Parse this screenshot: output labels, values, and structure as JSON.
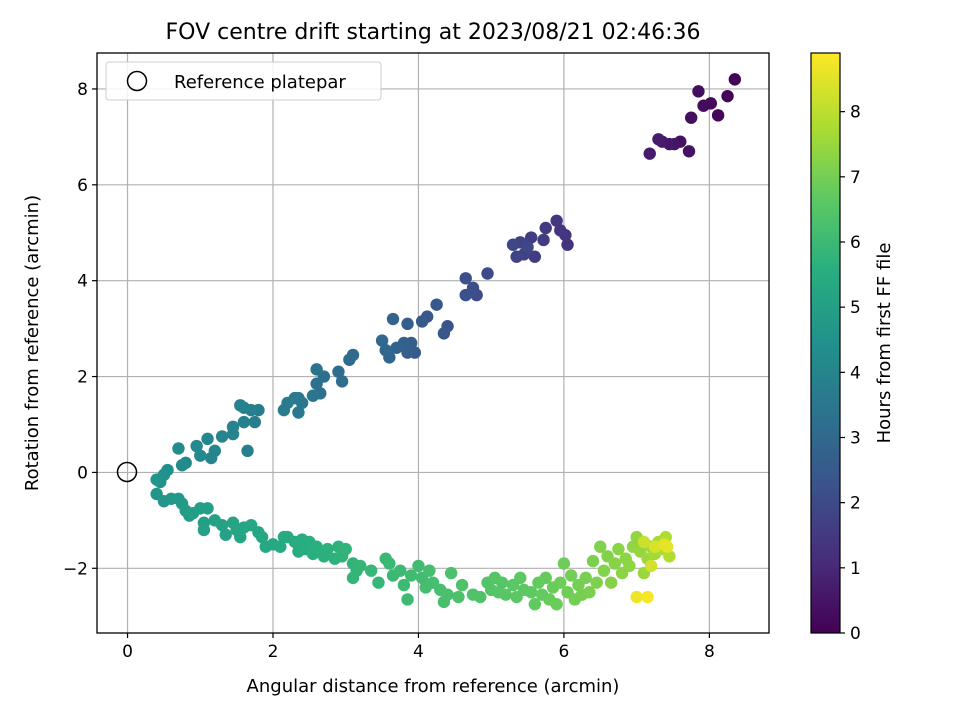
{
  "chart_data": {
    "type": "scatter",
    "title": "FOV centre drift starting at 2023/08/21 02:46:36",
    "xlabel": "Angular distance from reference (arcmin)",
    "ylabel": "Rotation from reference (arcmin)",
    "xlim": [
      -0.42,
      8.82
    ],
    "ylim": [
      -3.35,
      8.75
    ],
    "xticks": [
      0,
      2,
      4,
      6,
      8
    ],
    "yticks": [
      -2,
      0,
      2,
      4,
      6,
      8
    ],
    "xtick_labels": [
      "0",
      "2",
      "4",
      "6",
      "8"
    ],
    "ytick_labels": [
      "−2",
      "0",
      "2",
      "4",
      "6",
      "8"
    ],
    "grid": true,
    "legend": {
      "position": "top-left",
      "entries": [
        "Reference platepar"
      ]
    },
    "reference_point": {
      "x": 0,
      "y": 0,
      "marker": "open-circle"
    },
    "colorbar": {
      "label": "Hours from first FF file",
      "range": [
        0,
        8.9
      ],
      "ticks": [
        0,
        1,
        2,
        3,
        4,
        5,
        6,
        7,
        8
      ],
      "tick_labels": [
        "0",
        "1",
        "2",
        "3",
        "4",
        "5",
        "6",
        "7",
        "8"
      ],
      "colormap": "viridis"
    },
    "series": [
      {
        "points": [
          [
            8.35,
            8.2,
            0.05
          ],
          [
            8.25,
            7.85,
            0.1
          ],
          [
            8.12,
            7.45,
            0.15
          ],
          [
            8.02,
            7.7,
            0.2
          ],
          [
            7.92,
            7.65,
            0.25
          ],
          [
            7.85,
            7.95,
            0.3
          ],
          [
            7.75,
            7.4,
            0.35
          ],
          [
            7.72,
            6.7,
            0.4
          ],
          [
            7.6,
            6.9,
            0.45
          ],
          [
            7.52,
            6.85,
            0.5
          ],
          [
            7.45,
            6.85,
            0.55
          ],
          [
            7.35,
            6.9,
            0.6
          ],
          [
            7.18,
            6.65,
            0.65
          ],
          [
            7.3,
            6.95,
            0.7
          ],
          [
            6.05,
            4.75,
            1.3
          ],
          [
            6.02,
            4.95,
            1.35
          ],
          [
            5.95,
            5.05,
            1.4
          ],
          [
            5.9,
            5.25,
            1.45
          ],
          [
            5.75,
            5.1,
            1.5
          ],
          [
            5.72,
            4.85,
            1.55
          ],
          [
            5.6,
            4.5,
            1.6
          ],
          [
            5.55,
            4.9,
            1.65
          ],
          [
            5.45,
            4.55,
            1.7
          ],
          [
            5.4,
            4.8,
            1.75
          ],
          [
            5.35,
            4.5,
            1.8
          ],
          [
            5.3,
            4.75,
            1.85
          ],
          [
            5.5,
            4.7,
            1.9
          ],
          [
            4.95,
            4.15,
            2.0
          ],
          [
            4.8,
            3.7,
            2.05
          ],
          [
            4.75,
            3.85,
            2.1
          ],
          [
            4.65,
            4.05,
            2.15
          ],
          [
            4.65,
            3.7,
            2.2
          ],
          [
            4.4,
            3.05,
            2.3
          ],
          [
            4.35,
            2.9,
            2.35
          ],
          [
            4.25,
            3.5,
            2.4
          ],
          [
            4.12,
            3.25,
            2.45
          ],
          [
            4.05,
            3.15,
            2.5
          ],
          [
            3.95,
            2.5,
            2.55
          ],
          [
            3.9,
            2.7,
            2.6
          ],
          [
            3.85,
            3.1,
            2.65
          ],
          [
            3.85,
            2.5,
            2.7
          ],
          [
            3.8,
            2.7,
            2.75
          ],
          [
            3.7,
            2.6,
            2.8
          ],
          [
            3.65,
            3.2,
            2.85
          ],
          [
            3.6,
            2.4,
            2.9
          ],
          [
            3.55,
            2.55,
            2.95
          ],
          [
            3.5,
            2.75,
            3.0
          ],
          [
            3.1,
            2.45,
            3.05
          ],
          [
            3.05,
            2.35,
            3.1
          ],
          [
            2.95,
            1.9,
            3.15
          ],
          [
            2.9,
            2.1,
            3.2
          ],
          [
            2.7,
            2.0,
            3.25
          ],
          [
            2.65,
            1.65,
            3.3
          ],
          [
            2.6,
            1.85,
            3.35
          ],
          [
            2.6,
            2.15,
            3.4
          ],
          [
            2.55,
            1.6,
            3.45
          ],
          [
            2.4,
            1.45,
            3.5
          ],
          [
            2.35,
            1.55,
            3.55
          ],
          [
            2.35,
            1.25,
            3.6
          ],
          [
            2.3,
            1.55,
            3.62
          ],
          [
            2.2,
            1.45,
            3.65
          ],
          [
            2.15,
            1.3,
            3.7
          ],
          [
            1.8,
            1.3,
            3.75
          ],
          [
            1.75,
            1.05,
            3.78
          ],
          [
            1.7,
            1.3,
            3.8
          ],
          [
            1.65,
            0.45,
            3.82
          ],
          [
            1.6,
            1.05,
            3.85
          ],
          [
            1.6,
            1.35,
            3.88
          ],
          [
            1.55,
            1.4,
            3.9
          ],
          [
            1.45,
            0.8,
            3.95
          ],
          [
            1.45,
            0.95,
            3.98
          ],
          [
            1.3,
            0.75,
            4.0
          ],
          [
            1.2,
            0.45,
            4.05
          ],
          [
            1.15,
            0.3,
            4.08
          ],
          [
            1.1,
            0.7,
            4.1
          ],
          [
            1.0,
            0.35,
            4.15
          ],
          [
            0.95,
            0.55,
            4.18
          ],
          [
            0.8,
            0.2,
            4.2
          ],
          [
            0.75,
            0.15,
            4.22
          ],
          [
            0.7,
            0.5,
            4.25
          ],
          [
            0.55,
            0.05,
            4.4
          ],
          [
            0.5,
            -0.05,
            4.45
          ],
          [
            0.45,
            -0.2,
            4.5
          ],
          [
            0.4,
            -0.15,
            4.55
          ],
          [
            0.4,
            -0.45,
            4.6
          ],
          [
            0.5,
            -0.6,
            4.65
          ],
          [
            0.6,
            -0.55,
            4.7
          ],
          [
            0.7,
            -0.55,
            4.75
          ],
          [
            0.75,
            -0.65,
            4.8
          ],
          [
            0.8,
            -0.8,
            4.85
          ],
          [
            0.85,
            -0.9,
            4.88
          ],
          [
            0.9,
            -0.85,
            4.9
          ],
          [
            1.0,
            -0.75,
            4.95
          ],
          [
            1.05,
            -1.05,
            4.98
          ],
          [
            1.1,
            -0.75,
            5.0
          ],
          [
            1.05,
            -1.2,
            5.02
          ],
          [
            1.2,
            -1.0,
            5.05
          ],
          [
            1.3,
            -1.1,
            5.1
          ],
          [
            1.35,
            -1.3,
            5.12
          ],
          [
            1.45,
            -1.05,
            5.15
          ],
          [
            1.5,
            -1.2,
            5.18
          ],
          [
            1.55,
            -1.35,
            5.2
          ],
          [
            1.6,
            -1.15,
            5.22
          ],
          [
            1.7,
            -1.1,
            5.25
          ],
          [
            1.8,
            -1.25,
            5.28
          ],
          [
            1.85,
            -1.35,
            5.3
          ],
          [
            1.9,
            -1.55,
            5.32
          ],
          [
            2.0,
            -1.5,
            5.35
          ],
          [
            2.1,
            -1.55,
            5.38
          ],
          [
            2.15,
            -1.35,
            5.4
          ],
          [
            2.2,
            -1.35,
            5.42
          ],
          [
            2.3,
            -1.45,
            5.45
          ],
          [
            2.35,
            -1.65,
            5.48
          ],
          [
            2.4,
            -1.4,
            5.5
          ],
          [
            2.45,
            -1.6,
            5.52
          ],
          [
            2.5,
            -1.45,
            5.55
          ],
          [
            2.55,
            -1.7,
            5.58
          ],
          [
            2.6,
            -1.55,
            5.6
          ],
          [
            2.7,
            -1.75,
            5.62
          ],
          [
            2.75,
            -1.6,
            5.65
          ],
          [
            2.85,
            -1.8,
            5.68
          ],
          [
            2.9,
            -1.55,
            5.7
          ],
          [
            2.95,
            -1.75,
            5.72
          ],
          [
            3.0,
            -1.6,
            5.75
          ],
          [
            3.1,
            -1.9,
            5.78
          ],
          [
            3.15,
            -2.05,
            5.8
          ],
          [
            3.1,
            -2.2,
            5.82
          ],
          [
            3.2,
            -1.95,
            5.85
          ],
          [
            3.35,
            -2.05,
            5.88
          ],
          [
            3.45,
            -2.3,
            5.9
          ],
          [
            3.55,
            -1.8,
            5.92
          ],
          [
            3.6,
            -1.9,
            5.95
          ],
          [
            3.65,
            -2.15,
            5.98
          ],
          [
            3.75,
            -2.05,
            6.0
          ],
          [
            3.8,
            -2.35,
            6.02
          ],
          [
            3.85,
            -2.65,
            6.05
          ],
          [
            3.9,
            -2.15,
            6.08
          ],
          [
            4.0,
            -1.95,
            6.1
          ],
          [
            4.05,
            -2.2,
            6.12
          ],
          [
            4.1,
            -2.4,
            6.15
          ],
          [
            4.15,
            -2.05,
            6.18
          ],
          [
            4.2,
            -2.3,
            6.2
          ],
          [
            4.3,
            -2.45,
            6.22
          ],
          [
            4.35,
            -2.7,
            6.25
          ],
          [
            4.4,
            -2.55,
            6.28
          ],
          [
            4.45,
            -2.1,
            6.3
          ],
          [
            4.55,
            -2.6,
            6.32
          ],
          [
            4.6,
            -2.35,
            6.35
          ],
          [
            4.75,
            -2.55,
            6.38
          ],
          [
            4.85,
            -2.6,
            6.4
          ],
          [
            4.95,
            -2.3,
            6.42
          ],
          [
            5.0,
            -2.45,
            6.45
          ],
          [
            5.05,
            -2.2,
            6.48
          ],
          [
            5.1,
            -2.5,
            6.5
          ],
          [
            5.15,
            -2.3,
            6.52
          ],
          [
            5.2,
            -2.55,
            6.55
          ],
          [
            5.3,
            -2.35,
            6.58
          ],
          [
            5.35,
            -2.6,
            6.6
          ],
          [
            5.4,
            -2.2,
            6.62
          ],
          [
            5.45,
            -2.45,
            6.65
          ],
          [
            5.55,
            -2.5,
            6.68
          ],
          [
            5.6,
            -2.75,
            6.7
          ],
          [
            5.65,
            -2.3,
            6.72
          ],
          [
            5.7,
            -2.55,
            6.75
          ],
          [
            5.75,
            -2.2,
            6.78
          ],
          [
            5.8,
            -2.65,
            6.8
          ],
          [
            5.85,
            -2.4,
            6.82
          ],
          [
            5.9,
            -2.75,
            6.85
          ],
          [
            5.95,
            -2.3,
            6.88
          ],
          [
            6.0,
            -1.9,
            6.9
          ],
          [
            6.05,
            -2.5,
            6.92
          ],
          [
            6.1,
            -2.15,
            6.95
          ],
          [
            6.15,
            -2.65,
            6.98
          ],
          [
            6.2,
            -2.35,
            7.0
          ],
          [
            6.25,
            -2.55,
            7.02
          ],
          [
            6.3,
            -2.2,
            7.05
          ],
          [
            6.35,
            -2.5,
            7.08
          ],
          [
            6.4,
            -1.85,
            7.1
          ],
          [
            6.45,
            -2.3,
            7.12
          ],
          [
            6.5,
            -1.55,
            7.15
          ],
          [
            6.55,
            -2.05,
            7.18
          ],
          [
            6.6,
            -1.75,
            7.2
          ],
          [
            6.65,
            -2.3,
            7.22
          ],
          [
            6.7,
            -1.9,
            7.25
          ],
          [
            6.75,
            -1.6,
            7.28
          ],
          [
            6.8,
            -2.1,
            7.3
          ],
          [
            6.85,
            -1.8,
            7.32
          ],
          [
            6.9,
            -1.95,
            7.35
          ],
          [
            6.95,
            -1.55,
            7.38
          ],
          [
            7.0,
            -1.35,
            7.4
          ],
          [
            7.05,
            -1.65,
            7.45
          ],
          [
            7.1,
            -2.1,
            7.5
          ],
          [
            7.15,
            -1.8,
            7.55
          ],
          [
            7.2,
            -1.55,
            7.6
          ],
          [
            7.25,
            -1.7,
            7.65
          ],
          [
            7.3,
            -1.45,
            7.7
          ],
          [
            7.35,
            -1.6,
            7.75
          ],
          [
            7.4,
            -1.35,
            7.8
          ],
          [
            7.45,
            -1.75,
            7.85
          ],
          [
            7.1,
            -1.45,
            8.2
          ],
          [
            7.2,
            -1.95,
            8.3
          ],
          [
            7.25,
            -1.55,
            8.4
          ],
          [
            7.38,
            -1.5,
            8.5
          ],
          [
            7.42,
            -1.55,
            8.6
          ],
          [
            7.0,
            -2.6,
            8.7
          ],
          [
            7.15,
            -2.6,
            8.8
          ]
        ]
      }
    ]
  }
}
